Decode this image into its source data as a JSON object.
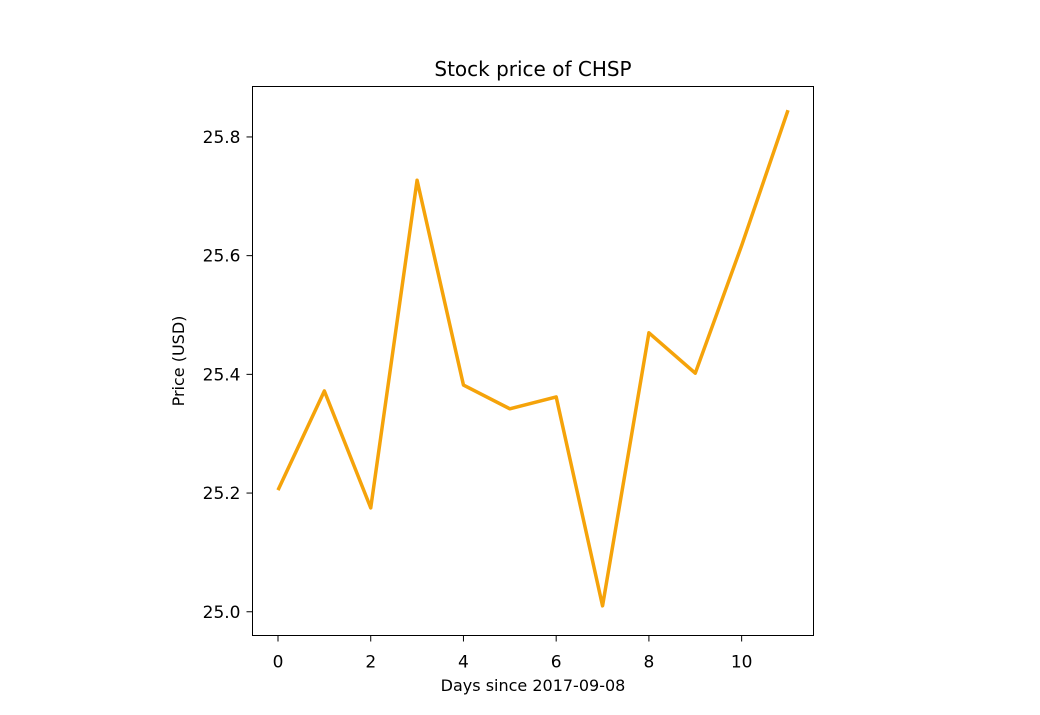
{
  "chart_data": {
    "type": "line",
    "title": "Stock price of CHSP",
    "xlabel": "Days since 2017-09-08",
    "ylabel": "Price (USD)",
    "xlim": [
      -0.55,
      11.55
    ],
    "ylim": [
      24.96,
      25.885
    ],
    "x_ticks": [
      0,
      2,
      4,
      6,
      8,
      10
    ],
    "y_ticks": [
      25.0,
      25.2,
      25.4,
      25.6,
      25.8
    ],
    "x_tick_labels": [
      "0",
      "2",
      "4",
      "6",
      "8",
      "10"
    ],
    "y_tick_labels": [
      "25.0",
      "25.2",
      "25.4",
      "25.6",
      "25.8"
    ],
    "grid": false,
    "series": [
      {
        "color": "#f5a30a",
        "x": [
          0,
          1,
          2,
          3,
          4,
          5,
          6,
          7,
          8,
          9,
          10,
          11
        ],
        "values": [
          25.205,
          25.372,
          25.175,
          25.727,
          25.382,
          25.342,
          25.362,
          25.01,
          25.47,
          25.402,
          25.617,
          25.845
        ]
      }
    ]
  }
}
